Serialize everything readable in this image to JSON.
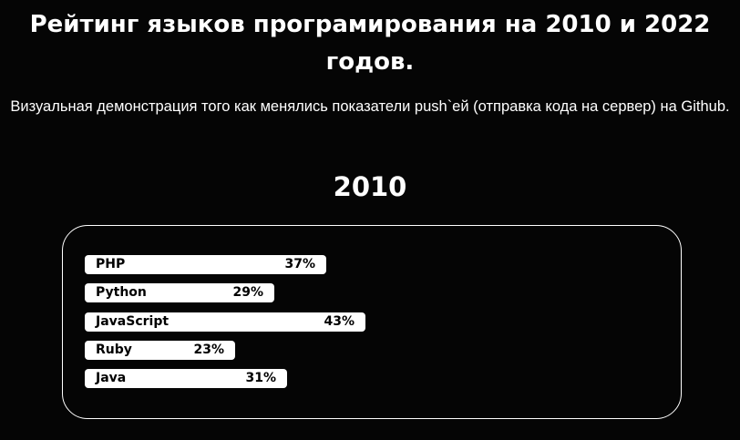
{
  "header": {
    "title": "Рейтинг языков програмирования на 2010 и 2022 годов.",
    "subtitle": "Визуальная демонстрация того как менялись показатели push`ей (отправка кода на сервер) на Github."
  },
  "section": {
    "year": "2010"
  },
  "chart_data": {
    "type": "bar",
    "orientation": "horizontal",
    "title": "2010",
    "categories": [
      "PHP",
      "Python",
      "JavaScript",
      "Ruby",
      "Java"
    ],
    "values": [
      37,
      29,
      43,
      23,
      31
    ],
    "value_labels": [
      "37%",
      "29%",
      "43%",
      "23%",
      "31%"
    ],
    "unit": "%",
    "bar_color": "#ffffff",
    "label_color": "#000000",
    "xlim": [
      0,
      100
    ],
    "grid": false,
    "legend": "none"
  },
  "colors": {
    "background": "#050505",
    "text": "#ffffff",
    "bar": "#ffffff"
  }
}
